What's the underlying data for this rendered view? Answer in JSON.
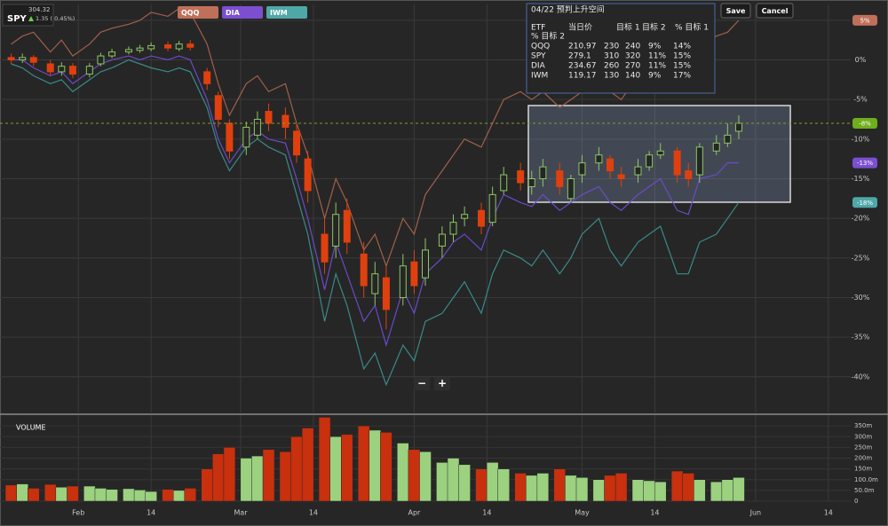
{
  "toolbar": {
    "symbol": "SPY",
    "price": "304.32",
    "change": "1.35 ( 0.45%)",
    "save": "Save",
    "cancel": "Cancel",
    "zoom_out": "−",
    "zoom_in": "+"
  },
  "info_box": {
    "title": "04/22 预判上升空间",
    "header": [
      "ETF",
      "当日价",
      "目标 1",
      "目标 2",
      "% 目标 1",
      "% 目标 2"
    ],
    "rows": [
      [
        "QQQ",
        "210.97",
        "230",
        "240",
        "9%",
        "14%"
      ],
      [
        "SPY",
        "279.1",
        "310",
        "320",
        "11%",
        "15%"
      ],
      [
        "DIA",
        "234.67",
        "260",
        "270",
        "11%",
        "15%"
      ],
      [
        "IWM",
        "119.17",
        "130",
        "140",
        "9%",
        "17%"
      ]
    ]
  },
  "chart_data": [
    {
      "type": "candlestick",
      "x": [
        20,
        22,
        24,
        27,
        29,
        31,
        34,
        36,
        38,
        41,
        43,
        45,
        48,
        50,
        52,
        55,
        57,
        59,
        62,
        64,
        66,
        69,
        71,
        73,
        76,
        78,
        80,
        83,
        85,
        87,
        90,
        92,
        94,
        97,
        99,
        101,
        104,
        106,
        108,
        111,
        113,
        115,
        118,
        120,
        122,
        125,
        127,
        129,
        132,
        134,
        136,
        139,
        141,
        143,
        146,
        148,
        150
      ],
      "open": [
        0.3,
        0.0,
        0.3,
        -0.5,
        -1.5,
        -0.8,
        -1.8,
        -0.5,
        0.5,
        1.0,
        1.2,
        1.4,
        1.9,
        1.4,
        2.0,
        -1.5,
        -4.5,
        -8.0,
        -11.0,
        -9.5,
        -6.5,
        -7.0,
        -9.0,
        -12.5,
        -22.0,
        -23.5,
        -19.0,
        -24.5,
        -29.5,
        -27.5,
        -30.0,
        -25.5,
        -27.5,
        -23.5,
        -22.0,
        -20.0,
        -19.0,
        -20.5,
        -16.5,
        -14.0,
        -16.0,
        -15.0,
        -14.0,
        -17.5,
        -14.5,
        -13.0,
        -12.5,
        -14.5,
        -14.5,
        -13.5,
        -12.0,
        -11.5,
        -14.0,
        -14.5,
        -11.5,
        -10.5,
        -9.0
      ],
      "high": [
        0.8,
        0.8,
        0.6,
        0,
        -0.3,
        -0.4,
        -0.4,
        0.9,
        1.4,
        1.7,
        1.9,
        2.2,
        2.3,
        2.4,
        2.5,
        -1,
        -4,
        -7.5,
        -7.8,
        -6.5,
        -5.5,
        -6,
        -8,
        -11.5,
        -20,
        -18,
        -17.5,
        -23,
        -25.5,
        -26,
        -24.5,
        -24,
        -22.5,
        -21,
        -19.5,
        -18.5,
        -18,
        -16,
        -13.5,
        -13,
        -14,
        -12.5,
        -13,
        -14.5,
        -12,
        -11,
        -12,
        -13.5,
        -12.5,
        -11.5,
        -10.5,
        -11,
        -13,
        -10.5,
        -9.5,
        -8,
        -7
      ],
      "low": [
        -0.5,
        -0.4,
        -0.8,
        -2,
        -2,
        -2.3,
        -2.2,
        -0.8,
        0.2,
        0.7,
        0.9,
        1.1,
        1.1,
        1.1,
        1.2,
        -3.8,
        -8.5,
        -12.5,
        -12,
        -10,
        -9,
        -10,
        -13,
        -18,
        -27,
        -25,
        -24.5,
        -30,
        -31,
        -34,
        -31,
        -29.5,
        -28.5,
        -25,
        -23,
        -21,
        -22,
        -21,
        -17,
        -16.5,
        -17,
        -16,
        -17,
        -18,
        -15.5,
        -14,
        -15,
        -16,
        -15.5,
        -14,
        -12.5,
        -15.5,
        -16,
        -15.5,
        -12,
        -11,
        -10
      ],
      "close": [
        0.0,
        0.3,
        -0.3,
        -1.5,
        -0.8,
        -1.8,
        -0.8,
        0.5,
        1.0,
        1.3,
        1.5,
        1.8,
        1.5,
        2.0,
        1.6,
        -3.0,
        -7.5,
        -11.5,
        -8.5,
        -7.5,
        -8.0,
        -8.5,
        -12.0,
        -16.5,
        -25.5,
        -19.5,
        -23.0,
        -28.5,
        -27.0,
        -31.5,
        -26.0,
        -28.5,
        -24.0,
        -22.0,
        -20.5,
        -19.5,
        -21.0,
        -17.0,
        -14.5,
        -15.5,
        -15.0,
        -13.5,
        -16.0,
        -15.0,
        -13.0,
        -12.0,
        -14.0,
        -15.0,
        -13.5,
        -12.0,
        -11.5,
        -14.5,
        -15.0,
        -11.0,
        -10.5,
        -9.5,
        -8.0
      ],
      "up_color": "#8cc665",
      "down_color": "#e0400e",
      "end_label": "-8%",
      "end_color": "#6fae1c",
      "xlim": [
        18,
        170
      ],
      "xticks": [
        {
          "value": 32,
          "label": "Feb"
        },
        {
          "value": 45,
          "label": "14"
        },
        {
          "value": 61,
          "label": "Mar"
        },
        {
          "value": 74,
          "label": "14"
        },
        {
          "value": 92,
          "label": "Apr"
        },
        {
          "value": 105,
          "label": "14"
        },
        {
          "value": 122,
          "label": "May"
        },
        {
          "value": 135,
          "label": "14"
        },
        {
          "value": 153,
          "label": "Jun"
        },
        {
          "value": 166,
          "label": "14"
        }
      ],
      "ylim": [
        -44.5,
        7
      ],
      "yticks": [
        {
          "value": 5,
          "label": "5%"
        },
        {
          "value": 0,
          "label": "0%"
        },
        {
          "value": -5,
          "label": "-5%"
        },
        {
          "value": -10,
          "label": "-10%"
        },
        {
          "value": -15,
          "label": "-15%"
        },
        {
          "value": -20,
          "label": "-20%"
        },
        {
          "value": -25,
          "label": "-25%"
        },
        {
          "value": -30,
          "label": "-30%"
        },
        {
          "value": -35,
          "label": "-35%"
        },
        {
          "value": -40,
          "label": "-40%"
        }
      ],
      "grid": true,
      "series": [
        {
          "name": "QQQ",
          "color": "#a0604a",
          "button_color": "#c0705a",
          "end_label": "5%",
          "values": [
            2,
            3,
            3.5,
            1,
            2.5,
            0.5,
            2,
            3.5,
            4,
            4.5,
            5,
            6,
            5.5,
            6.5,
            6,
            2,
            -3,
            -7,
            -3,
            -2,
            -4,
            -3,
            -8,
            -12,
            -20,
            -15,
            -18,
            -24,
            -22,
            -26,
            -20,
            -22,
            -17,
            -14,
            -12,
            -10,
            -11,
            -8,
            -5,
            -4,
            -5,
            -4,
            -6,
            -5,
            -4,
            -3,
            -4,
            -5,
            -2,
            0,
            1,
            -1,
            0,
            2,
            3,
            3.5,
            5
          ]
        },
        {
          "name": "DIA",
          "color": "#6a4ac8",
          "button_color": "#7b4fd0",
          "end_label": "-13%",
          "values": [
            0,
            0,
            -1,
            -2,
            -1.5,
            -3,
            -1.5,
            -0.5,
            0,
            0.5,
            0,
            0.5,
            0,
            0.5,
            0,
            -5,
            -10,
            -13,
            -10,
            -9,
            -10,
            -10.5,
            -15,
            -20,
            -29,
            -23,
            -27,
            -33,
            -31,
            -36,
            -29,
            -32,
            -27,
            -25,
            -23,
            -22,
            -24,
            -20,
            -17,
            -18,
            -18.5,
            -17,
            -19,
            -18,
            -17,
            -16,
            -18,
            -19,
            -17,
            -16,
            -15,
            -19,
            -19.5,
            -15,
            -14.5,
            -13,
            -13
          ]
        },
        {
          "name": "IWM",
          "color": "#3a8a8a",
          "button_color": "#4fa8a8",
          "end_label": "-18%",
          "values": [
            -0.5,
            -1,
            -2,
            -3,
            -2.5,
            -4,
            -2.5,
            -1.5,
            -1,
            0,
            -0.5,
            -1,
            -1.5,
            -1,
            -1.5,
            -6,
            -11,
            -14,
            -11,
            -10,
            -11,
            -12,
            -17,
            -22,
            -33,
            -27,
            -31,
            -39,
            -37,
            -41,
            -36,
            -38,
            -33,
            -32,
            -30,
            -28,
            -32,
            -27,
            -24,
            -25,
            -26,
            -24,
            -27,
            -25,
            -22,
            -20,
            -24,
            -26,
            -23,
            -22,
            -21,
            -27,
            -27,
            -23,
            -22,
            -20,
            -18
          ]
        }
      ]
    },
    {
      "type": "bar",
      "title": "VOLUME",
      "values": [
        75,
        80,
        60,
        78,
        65,
        70,
        70,
        60,
        55,
        58,
        52,
        45,
        55,
        50,
        60,
        150,
        220,
        250,
        200,
        210,
        240,
        230,
        300,
        340,
        390,
        300,
        310,
        350,
        330,
        320,
        270,
        240,
        230,
        180,
        200,
        170,
        150,
        180,
        150,
        130,
        120,
        130,
        150,
        120,
        110,
        100,
        120,
        130,
        100,
        95,
        90,
        140,
        130,
        100,
        90,
        100,
        110
      ],
      "up_color": "#9bd17f",
      "down_color": "#c8300e",
      "ylim": [
        0,
        400
      ],
      "yticks": [
        {
          "value": 350,
          "label": "350m"
        },
        {
          "value": 300,
          "label": "300m"
        },
        {
          "value": 250,
          "label": "250m"
        },
        {
          "value": 200,
          "label": "200m"
        },
        {
          "value": 150,
          "label": "150m"
        },
        {
          "value": 100,
          "label": "100.0m"
        },
        {
          "value": 50,
          "label": "50.0m"
        },
        0
      ]
    }
  ]
}
